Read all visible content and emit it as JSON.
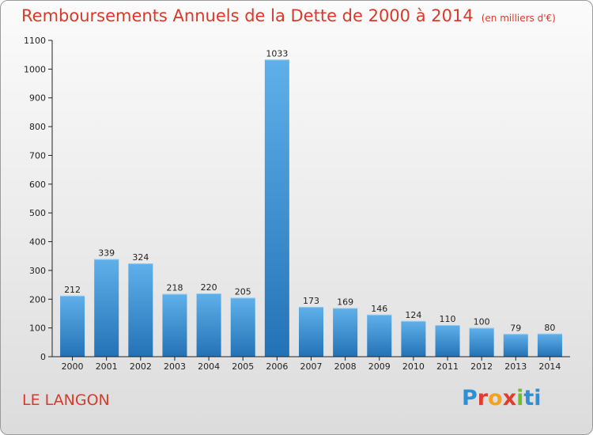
{
  "title": "Remboursements Annuels de la Dette de 2000 à 2014",
  "title_unit": "(en milliers d'€)",
  "town": "LE LANGON",
  "logo": {
    "letters": [
      "P",
      "r",
      "o",
      "x",
      "i",
      "ti"
    ],
    "colors": [
      "#2f8fd6",
      "#e53b2d",
      "#f2a21c",
      "#e53b2d",
      "#6fbf2a",
      "#2f8fd6"
    ]
  },
  "colors": {
    "bar_light": "#5fb0ea",
    "bar_dark": "#2472b6",
    "title": "#d83a2a",
    "axis": "#222222"
  },
  "chart_data": {
    "type": "bar",
    "title": "Remboursements Annuels de la Dette de 2000 à 2014",
    "xlabel": "",
    "ylabel": "",
    "categories": [
      "2000",
      "2001",
      "2002",
      "2003",
      "2004",
      "2005",
      "2006",
      "2007",
      "2008",
      "2009",
      "2010",
      "2011",
      "2012",
      "2013",
      "2014"
    ],
    "values": [
      212,
      339,
      324,
      218,
      220,
      205,
      1033,
      173,
      169,
      146,
      124,
      110,
      100,
      79,
      80
    ],
    "ylim": [
      0,
      1100
    ],
    "yticks": [
      0,
      100,
      200,
      300,
      400,
      500,
      600,
      700,
      800,
      900,
      1000,
      1100
    ],
    "grid": false,
    "legend": "none"
  }
}
